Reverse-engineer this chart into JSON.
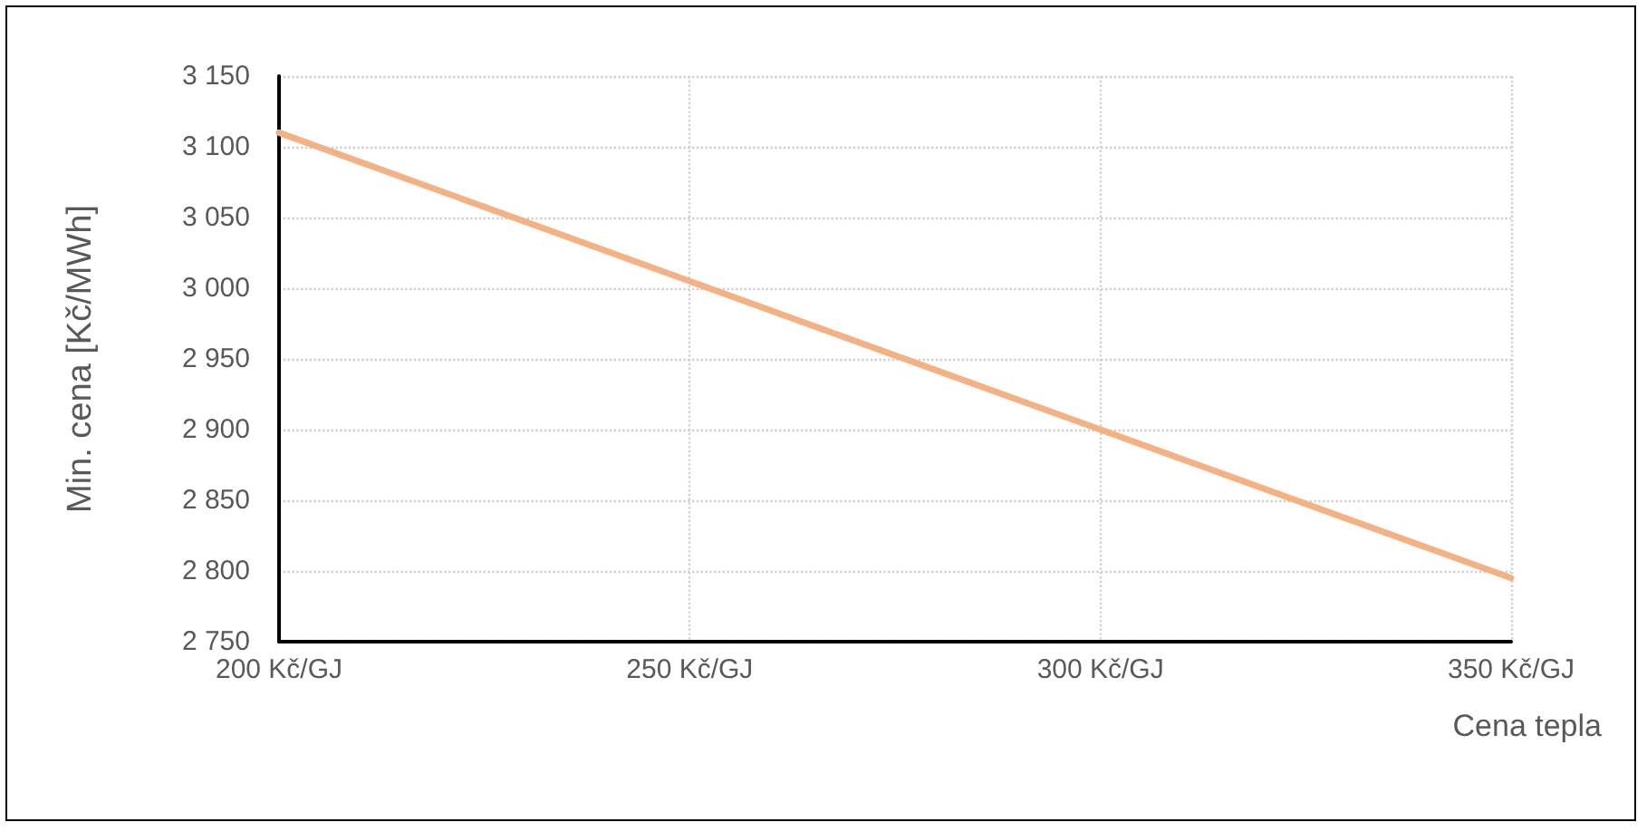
{
  "chart_data": {
    "type": "line",
    "xlabel": "Cena tepla",
    "ylabel": "Min. cena [Kč/MWh]",
    "x": [
      200,
      250,
      300,
      350
    ],
    "series": [
      {
        "color": "#f4b183",
        "values": [
          3110,
          3005,
          2900,
          2795
        ]
      }
    ],
    "xlim": [
      200,
      350
    ],
    "xticks": [
      {
        "value": 200,
        "label": "200 Kč/GJ"
      },
      {
        "value": 250,
        "label": "250 Kč/GJ"
      },
      {
        "value": 300,
        "label": "300 Kč/GJ"
      },
      {
        "value": 350,
        "label": "350 Kč/GJ"
      }
    ],
    "ylim": [
      2750,
      3150
    ],
    "yticks": [
      {
        "value": 2750,
        "label": "2 750"
      },
      {
        "value": 2800,
        "label": "2 800"
      },
      {
        "value": 2850,
        "label": "2 850"
      },
      {
        "value": 2900,
        "label": "2 900"
      },
      {
        "value": 2950,
        "label": "2 950"
      },
      {
        "value": 3000,
        "label": "3 000"
      },
      {
        "value": 3050,
        "label": "3 050"
      },
      {
        "value": 3100,
        "label": "3 100"
      },
      {
        "value": 3150,
        "label": "3 150"
      }
    ],
    "grid": true,
    "marker": "none",
    "line_style": "solid"
  }
}
